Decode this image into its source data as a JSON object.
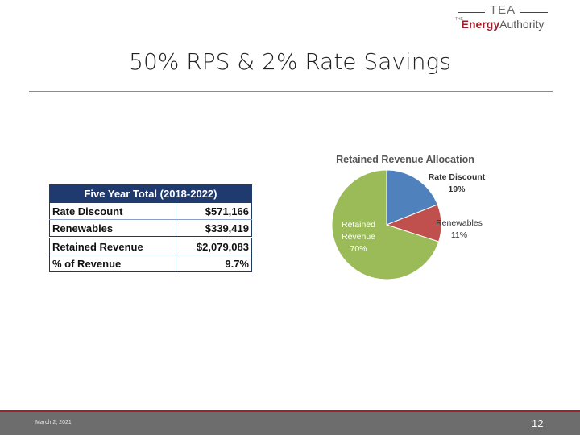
{
  "logo": {
    "top": "TEA",
    "the": "THE",
    "name_bold": "Energy",
    "name_rest": "Authority"
  },
  "title": "50% RPS & 2% Rate Savings",
  "table": {
    "header": "Five Year Total (2018-2022)",
    "rows": [
      {
        "label": "Rate Discount",
        "value": "$571,166"
      },
      {
        "label": "Renewables",
        "value": "$339,419"
      },
      {
        "label": "Retained Revenue",
        "value": "$2,079,083"
      },
      {
        "label": "% of Revenue",
        "value": "9.7%"
      }
    ]
  },
  "chart_data": {
    "type": "pie",
    "title": "Retained Revenue Allocation",
    "slices": [
      {
        "name": "Rate Discount",
        "value": 19,
        "label": "19%",
        "color": "#4f81bd"
      },
      {
        "name": "Renewables",
        "value": 11,
        "label": "11%",
        "color": "#c0504d"
      },
      {
        "name": "Retained Revenue",
        "value": 70,
        "label": "70%",
        "color": "#9bbb59"
      }
    ]
  },
  "footer": {
    "date": "March 2, 2021",
    "page": "12"
  }
}
